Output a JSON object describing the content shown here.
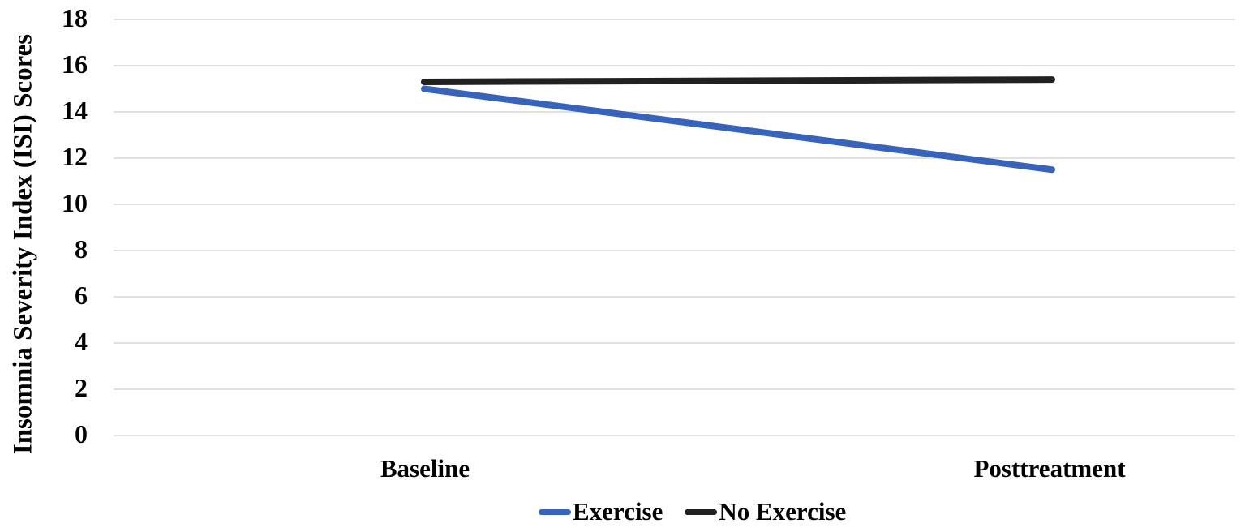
{
  "chart_data": {
    "type": "line",
    "title": "",
    "ylabel": "Insomnia Severity Index (ISI) Scores",
    "xlabel": "",
    "categories": [
      "Baseline",
      "Posttreatment"
    ],
    "series": [
      {
        "name": "Exercise",
        "values": [
          15.0,
          11.5
        ],
        "color": "#3764BA"
      },
      {
        "name": "No Exercise",
        "values": [
          15.3,
          15.4
        ],
        "color": "#212121"
      }
    ],
    "yticks": [
      0,
      2,
      4,
      6,
      8,
      10,
      12,
      14,
      16,
      18
    ],
    "ylim": [
      0,
      18
    ],
    "grid": "horizontal",
    "gridline_color": "#D7D7D7",
    "legend_position": "bottom",
    "axis_text_color": "#000000"
  }
}
